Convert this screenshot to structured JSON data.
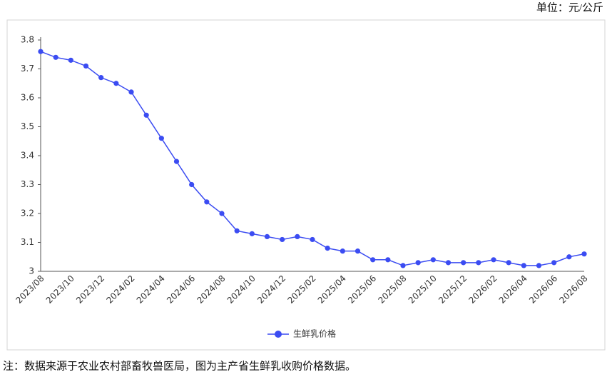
{
  "chart_data": {
    "type": "line",
    "unit": "单位：元/公斤",
    "note": "注：数据来源于农业农村部畜牧兽医局，图为主产省生鲜乳收购价格数据。",
    "categories": [
      "2023/08",
      null,
      "2023/10",
      null,
      "2023/12",
      null,
      "2024/02",
      null,
      "2024/04",
      null,
      "2024/06",
      null,
      "2024/08",
      null,
      "2024/10",
      null,
      "2024/12",
      null,
      "2025/02",
      null,
      "2025/04",
      null,
      "2025/06",
      null,
      "2025/08",
      null,
      "2025/10",
      null,
      "2025/12",
      null,
      "2026/02",
      null,
      "2026/04",
      null,
      "2026/06",
      null,
      "2026/08"
    ],
    "series": [
      {
        "name": "生鲜乳价格",
        "color": "#3b4cf2",
        "values": [
          3.76,
          3.74,
          3.73,
          3.71,
          3.67,
          3.65,
          3.62,
          3.54,
          3.46,
          3.38,
          3.3,
          3.24,
          3.2,
          3.14,
          3.13,
          3.12,
          3.11,
          3.12,
          3.11,
          3.08,
          3.07,
          3.07,
          3.04,
          3.04,
          3.02,
          3.03,
          3.04,
          3.03,
          3.03,
          3.03,
          3.04,
          3.03,
          3.02,
          3.02,
          3.03,
          3.05,
          3.06
        ]
      }
    ],
    "ylim": [
      3,
      3.8
    ],
    "yticks": [
      3,
      3.1,
      3.2,
      3.3,
      3.4,
      3.5,
      3.6,
      3.7,
      3.8
    ],
    "legend": "bottom"
  }
}
